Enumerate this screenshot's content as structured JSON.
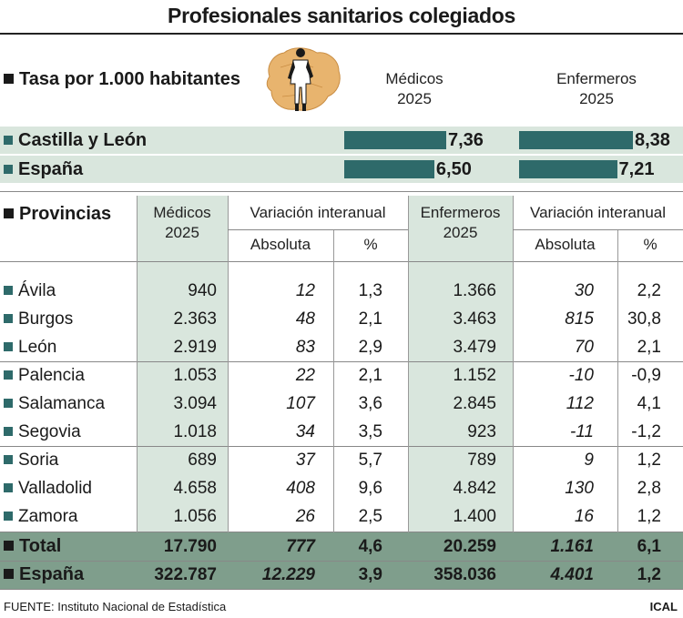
{
  "title": "Profesionales sanitarios colegiados",
  "rate_section": {
    "heading": "Tasa por 1.000 habitantes",
    "col_medicos": [
      "Médicos",
      "2025"
    ],
    "col_enfermeros": [
      "Enfermeros",
      "2025"
    ],
    "illustration": "doctor-over-map-illustration"
  },
  "chart_data": {
    "type": "bar",
    "title": "Tasa por 1.000 habitantes",
    "categories": [
      "Castilla y León",
      "España"
    ],
    "series": [
      {
        "name": "Médicos 2025",
        "values": [
          7.36,
          6.5
        ],
        "labels": [
          "7,36",
          "6,50"
        ]
      },
      {
        "name": "Enfermeros 2025",
        "values": [
          8.38,
          7.21
        ],
        "labels": [
          "8,38",
          "7,21"
        ]
      }
    ],
    "bar_color": "#2e6a6a"
  },
  "table": {
    "heading": "Provincias",
    "headers": {
      "medicos": [
        "Médicos",
        "2025"
      ],
      "var1": "Variación interanual",
      "enfermeros": [
        "Enfermeros",
        "2025"
      ],
      "var2": "Variación interanual",
      "absoluta": "Absoluta",
      "pct": "%"
    },
    "rows": [
      {
        "name": "Ávila",
        "med": "940",
        "med_abs": "12",
        "med_pct": "1,3",
        "enf": "1.366",
        "enf_abs": "30",
        "enf_pct": "2,2"
      },
      {
        "name": "Burgos",
        "med": "2.363",
        "med_abs": "48",
        "med_pct": "2,1",
        "enf": "3.463",
        "enf_abs": "815",
        "enf_pct": "30,8"
      },
      {
        "name": "León",
        "med": "2.919",
        "med_abs": "83",
        "med_pct": "2,9",
        "enf": "3.479",
        "enf_abs": "70",
        "enf_pct": "2,1"
      },
      {
        "name": "Palencia",
        "med": "1.053",
        "med_abs": "22",
        "med_pct": "2,1",
        "enf": "1.152",
        "enf_abs": "-10",
        "enf_pct": "-0,9"
      },
      {
        "name": "Salamanca",
        "med": "3.094",
        "med_abs": "107",
        "med_pct": "3,6",
        "enf": "2.845",
        "enf_abs": "112",
        "enf_pct": "4,1"
      },
      {
        "name": "Segovia",
        "med": "1.018",
        "med_abs": "34",
        "med_pct": "3,5",
        "enf": "923",
        "enf_abs": "-11",
        "enf_pct": "-1,2"
      },
      {
        "name": "Soria",
        "med": "689",
        "med_abs": "37",
        "med_pct": "5,7",
        "enf": "789",
        "enf_abs": "9",
        "enf_pct": "1,2"
      },
      {
        "name": "Valladolid",
        "med": "4.658",
        "med_abs": "408",
        "med_pct": "9,6",
        "enf": "4.842",
        "enf_abs": "130",
        "enf_pct": "2,8"
      },
      {
        "name": "Zamora",
        "med": "1.056",
        "med_abs": "26",
        "med_pct": "2,5",
        "enf": "1.400",
        "enf_abs": "16",
        "enf_pct": "1,2"
      }
    ],
    "totals": [
      {
        "name": "Total",
        "med": "17.790",
        "med_abs": "777",
        "med_pct": "4,6",
        "enf": "20.259",
        "enf_abs": "1.161",
        "enf_pct": "6,1"
      },
      {
        "name": "España",
        "med": "322.787",
        "med_abs": "12.229",
        "med_pct": "3,9",
        "enf": "358.036",
        "enf_abs": "4.401",
        "enf_pct": "1,2"
      }
    ]
  },
  "footer": {
    "source": "FUENTE: Instituto Nacional de Estadística",
    "credit": "ICAL"
  },
  "colors": {
    "shade": "#d9e6dd",
    "total_band": "#7f9e8c",
    "accent": "#2e6a6a"
  }
}
